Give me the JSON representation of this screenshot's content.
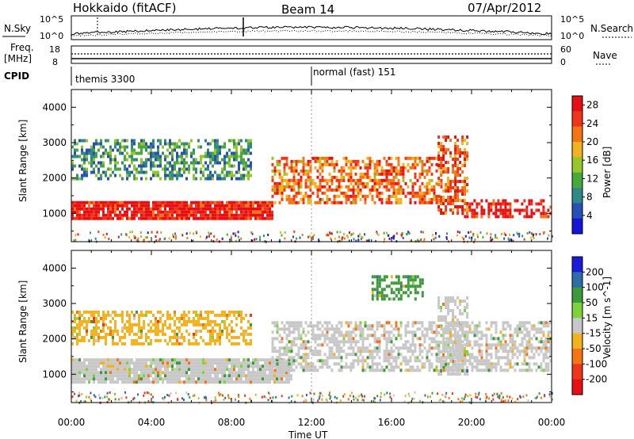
{
  "header": {
    "station": "Hokkaido (fitACF)",
    "beam": "Beam 14",
    "date": "07/Apr/2012"
  },
  "strip_labels": {
    "nsky": "N.Sky",
    "freq": "Freq.",
    "freq_unit": "[MHz]",
    "cpid": "CPID",
    "nsearch": "N.Search",
    "nave": "Nave"
  },
  "strip_ticks": {
    "nsky_top": "10^5",
    "nsky_bottom": "10^0",
    "freq_top": "18",
    "freq_bottom": "8",
    "nave_top": "60",
    "nave_bottom": "0"
  },
  "cpid": {
    "mode1": "themis 3300",
    "mode2": "normal (fast) 151",
    "switch_time_hours": 12.0
  },
  "chart_data": [
    {
      "type": "heatmap",
      "title": "",
      "xlabel": "Time UT",
      "ylabel": "Slant Range [km]",
      "xlim_hours": [
        0,
        24
      ],
      "ylim": [
        200,
        4500
      ],
      "x_ticks": [
        "00:00",
        "04:00",
        "08:00",
        "12:00",
        "16:00",
        "20:00",
        "00:00"
      ],
      "y_ticks": [
        1000,
        2000,
        3000,
        4000
      ],
      "colorbar": {
        "label": "Power [dB]",
        "ticks": [
          4,
          8,
          12,
          16,
          20,
          24,
          28
        ],
        "range": [
          0,
          30
        ],
        "colors": [
          "#1515d8",
          "#2850b8",
          "#2e8a84",
          "#49a83a",
          "#96c62a",
          "#f3b21f",
          "#f47514",
          "#f0361a",
          "#e60f14"
        ]
      },
      "echo_regions": [
        {
          "name": "near-range band",
          "t_start": 0,
          "t_end": 10,
          "range_low": 850,
          "range_high": 1350,
          "value": 28
        },
        {
          "name": "near-range band late",
          "t_start": 19.5,
          "t_end": 24,
          "range_low": 900,
          "range_high": 1400,
          "value": 28
        },
        {
          "name": "far-range band",
          "t_start": 0,
          "t_end": 9,
          "range_low": 2000,
          "range_high": 3100,
          "value": 10
        },
        {
          "name": "arc",
          "t_start": 10,
          "t_end": 18.5,
          "range_low": 1300,
          "range_high": 2600,
          "value": 22
        },
        {
          "name": "spike",
          "t_start": 18.3,
          "t_end": 19.8,
          "range_low": 1000,
          "range_high": 3200,
          "value": 24
        }
      ]
    },
    {
      "type": "heatmap",
      "title": "",
      "xlabel": "Time UT",
      "ylabel": "Slant Range [km]",
      "xlim_hours": [
        0,
        24
      ],
      "ylim": [
        200,
        4500
      ],
      "x_ticks": [
        "00:00",
        "04:00",
        "08:00",
        "12:00",
        "16:00",
        "20:00",
        "00:00"
      ],
      "y_ticks": [
        1000,
        2000,
        3000,
        4000
      ],
      "colorbar": {
        "label": "Velocity [m s^-1]",
        "ticks": [
          200,
          100,
          50,
          15,
          -15,
          -50,
          -100,
          -200
        ],
        "colors": [
          "#1a1ad8",
          "#2d6ea8",
          "#3d9a3a",
          "#7ed23a",
          "#c8c8c8",
          "#f3b21f",
          "#f47514",
          "#f0361a",
          "#e60f14"
        ]
      },
      "echo_regions": [
        {
          "name": "near-range band",
          "t_start": 0,
          "t_end": 11,
          "range_low": 800,
          "range_high": 1450,
          "value": 0
        },
        {
          "name": "far-range band",
          "t_start": 0,
          "t_end": 9,
          "range_low": 1900,
          "range_high": 2800,
          "value": -30
        },
        {
          "name": "arc",
          "t_start": 10,
          "t_end": 24,
          "range_low": 1100,
          "range_high": 2500,
          "value": 0
        },
        {
          "name": "high arc",
          "t_start": 15,
          "t_end": 17.5,
          "range_low": 3100,
          "range_high": 3800,
          "value": 60
        },
        {
          "name": "spike",
          "t_start": 18.3,
          "t_end": 19.8,
          "range_low": 1000,
          "range_high": 3200,
          "value": 5
        }
      ]
    }
  ]
}
